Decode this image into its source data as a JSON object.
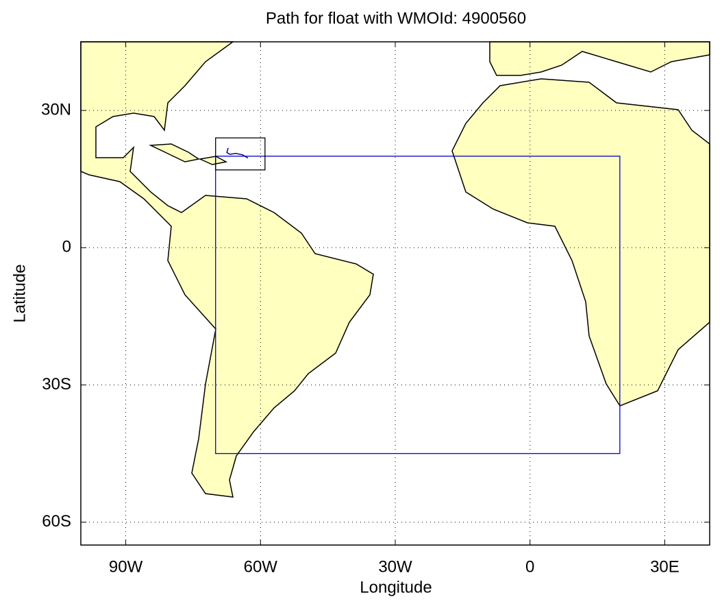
{
  "chart_data": {
    "type": "map",
    "title": "Path for float with WMOId: 4900560",
    "xlabel": "Longitude",
    "ylabel": "Latitude",
    "xlim": [
      -100,
      40
    ],
    "ylim": [
      -65,
      45
    ],
    "xticks": [
      {
        "value": -90,
        "label": "90W"
      },
      {
        "value": -60,
        "label": "60W"
      },
      {
        "value": -30,
        "label": "30W"
      },
      0,
      {
        "value": 30,
        "label": "30E"
      }
    ],
    "yticks": [
      {
        "value": 30,
        "label": "30N"
      },
      0,
      {
        "value": -30,
        "label": "30S"
      },
      {
        "value": -60,
        "label": "60S"
      }
    ],
    "grid": true,
    "region": {
      "lon": [
        -70,
        20
      ],
      "lat": [
        -45,
        20
      ],
      "color": "#0000cc"
    },
    "float_box": {
      "lon": [
        -70,
        -59
      ],
      "lat": [
        17,
        24
      ],
      "color": "#000000"
    },
    "track": {
      "lon": [
        -67.2,
        -67.5,
        -66.8,
        -65.5,
        -64.0,
        -62.8
      ],
      "lat": [
        21.8,
        20.8,
        20.4,
        20.6,
        20.3,
        19.6
      ],
      "color": "#00008b"
    }
  }
}
